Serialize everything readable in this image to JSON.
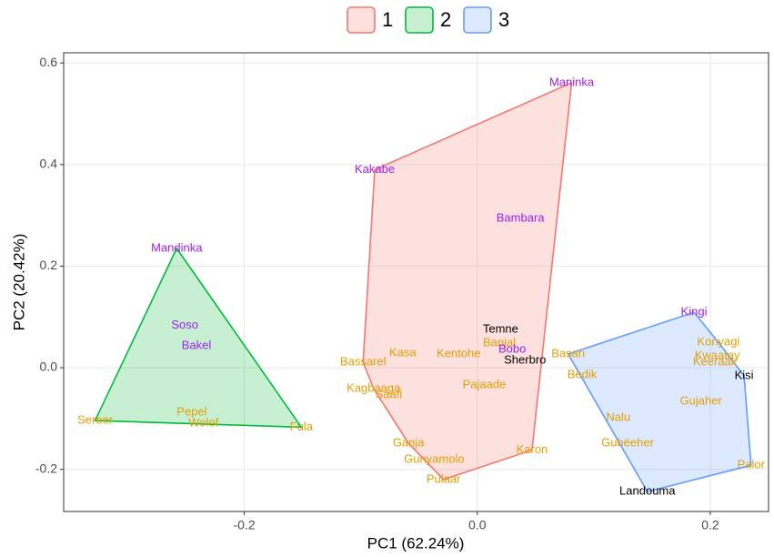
{
  "chart_data": {
    "type": "scatter",
    "xlabel": "PC1 (62.24%)",
    "ylabel": "PC2 (20.42%)",
    "xlim": [
      -0.355,
      0.25
    ],
    "ylim": [
      -0.283,
      0.62
    ],
    "xticks": [
      -0.2,
      {
        "value": 0,
        "label": "0.0"
      },
      0.2
    ],
    "yticks": [
      -0.2,
      {
        "value": 0,
        "label": "0.0"
      },
      0.2,
      0.4,
      0.6
    ],
    "grid": true,
    "legend": "top",
    "series": [
      {
        "name": "1",
        "color": "#F8766D",
        "labels": [
          "Maninka",
          "Kakabe",
          "Bambara",
          "Temne",
          "Banjal",
          "Bobo",
          "Sherbro",
          "Kasa",
          "Kentohe",
          "Bassarel",
          "Kagbaaga",
          "Saafi",
          "Pajaade",
          "Ganja",
          "Gunyamolo",
          "Pulaar",
          "Karon"
        ],
        "x": [
          0.081,
          -0.088,
          0.037,
          0.02,
          0.019,
          0.03,
          0.041,
          -0.064,
          -0.016,
          -0.098,
          -0.089,
          -0.076,
          0.006,
          -0.059,
          -0.037,
          -0.029,
          0.047
        ],
        "y": [
          0.561,
          0.39,
          0.294,
          0.075,
          0.048,
          0.036,
          0.014,
          0.029,
          0.027,
          0.011,
          -0.041,
          -0.054,
          -0.034,
          -0.149,
          -0.181,
          -0.22,
          -0.162
        ],
        "label_colors": [
          "#A020F0",
          "#A020F0",
          "#A020F0",
          "#000000",
          "#E69F00",
          "#A020F0",
          "#000000",
          "#E69F00",
          "#E69F00",
          "#E69F00",
          "#E69F00",
          "#E69F00",
          "#E69F00",
          "#E69F00",
          "#E69F00",
          "#E69F00",
          "#E69F00"
        ]
      },
      {
        "name": "2",
        "color": "#00BA38",
        "labels": [
          "Mandinka",
          "Soso",
          "Bakel",
          "Pepel",
          "Wolof",
          "Sereer",
          "Fula"
        ],
        "x": [
          -0.258,
          -0.251,
          -0.241,
          -0.245,
          -0.235,
          -0.328,
          -0.151
        ],
        "y": [
          0.235,
          0.083,
          0.043,
          -0.088,
          -0.109,
          -0.104,
          -0.117
        ],
        "label_colors": [
          "#A020F0",
          "#A020F0",
          "#A020F0",
          "#E69F00",
          "#E69F00",
          "#E69F00",
          "#E69F00"
        ]
      },
      {
        "name": "3",
        "color": "#619CFF",
        "labels": [
          "Kingi",
          "Konyagi",
          "Kwaatay",
          "Keeraak",
          "Kisi",
          "Basari",
          "Bedik",
          "Gujaher",
          "Nalu",
          "Gubëeher",
          "Palor",
          "Landouma"
        ],
        "x": [
          0.186,
          0.207,
          0.206,
          0.204,
          0.229,
          0.078,
          0.09,
          0.192,
          0.121,
          0.129,
          0.235,
          0.146
        ],
        "y": [
          0.109,
          0.05,
          0.023,
          0.011,
          -0.016,
          0.027,
          -0.014,
          -0.066,
          -0.099,
          -0.149,
          -0.192,
          -0.244
        ],
        "label_colors": [
          "#A020F0",
          "#E69F00",
          "#E69F00",
          "#E69F00",
          "#000000",
          "#E69F00",
          "#E69F00",
          "#E69F00",
          "#E69F00",
          "#E69F00",
          "#E69F00",
          "#000000"
        ]
      }
    ]
  }
}
